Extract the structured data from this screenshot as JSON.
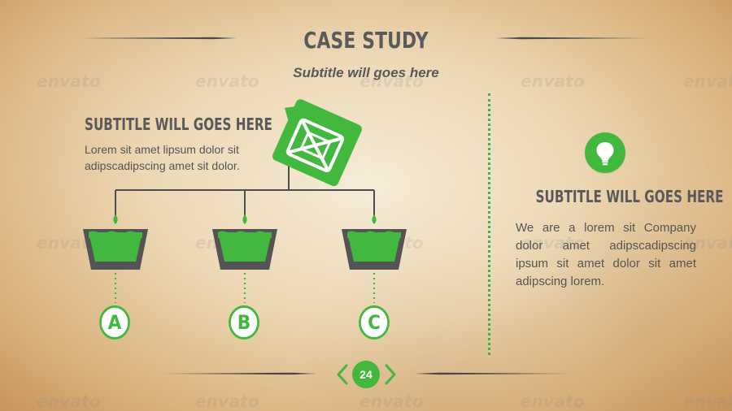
{
  "page": {
    "title": "CASE STUDY",
    "subtitle": "Subtitle will goes here",
    "page_number": "24"
  },
  "left_panel": {
    "heading": "SUBTITLE WILL GOES HERE",
    "body": "Lorem sit amet lipsum dolor sit adipscadipscing amet sit dolor."
  },
  "right_panel": {
    "heading": "SUBTITLE WILL GOES HERE",
    "body": "We are a lorem sit Company dolor amet adipscadipscing ipsum sit amet dolor sit amet adipscing lorem."
  },
  "diagram": {
    "options": [
      {
        "label": "A"
      },
      {
        "label": "B"
      },
      {
        "label": "C"
      }
    ]
  },
  "decor": {
    "watermark_text": "envato",
    "icons": [
      "fuel-can-icon",
      "light-bulb-icon",
      "chevron-left-icon",
      "chevron-right-icon"
    ]
  },
  "colors": {
    "accent_green": "#43b83f",
    "text_gray": "#5a5959",
    "line_dark": "#4d4d4d",
    "paper_tan": "#e7cfaa"
  }
}
